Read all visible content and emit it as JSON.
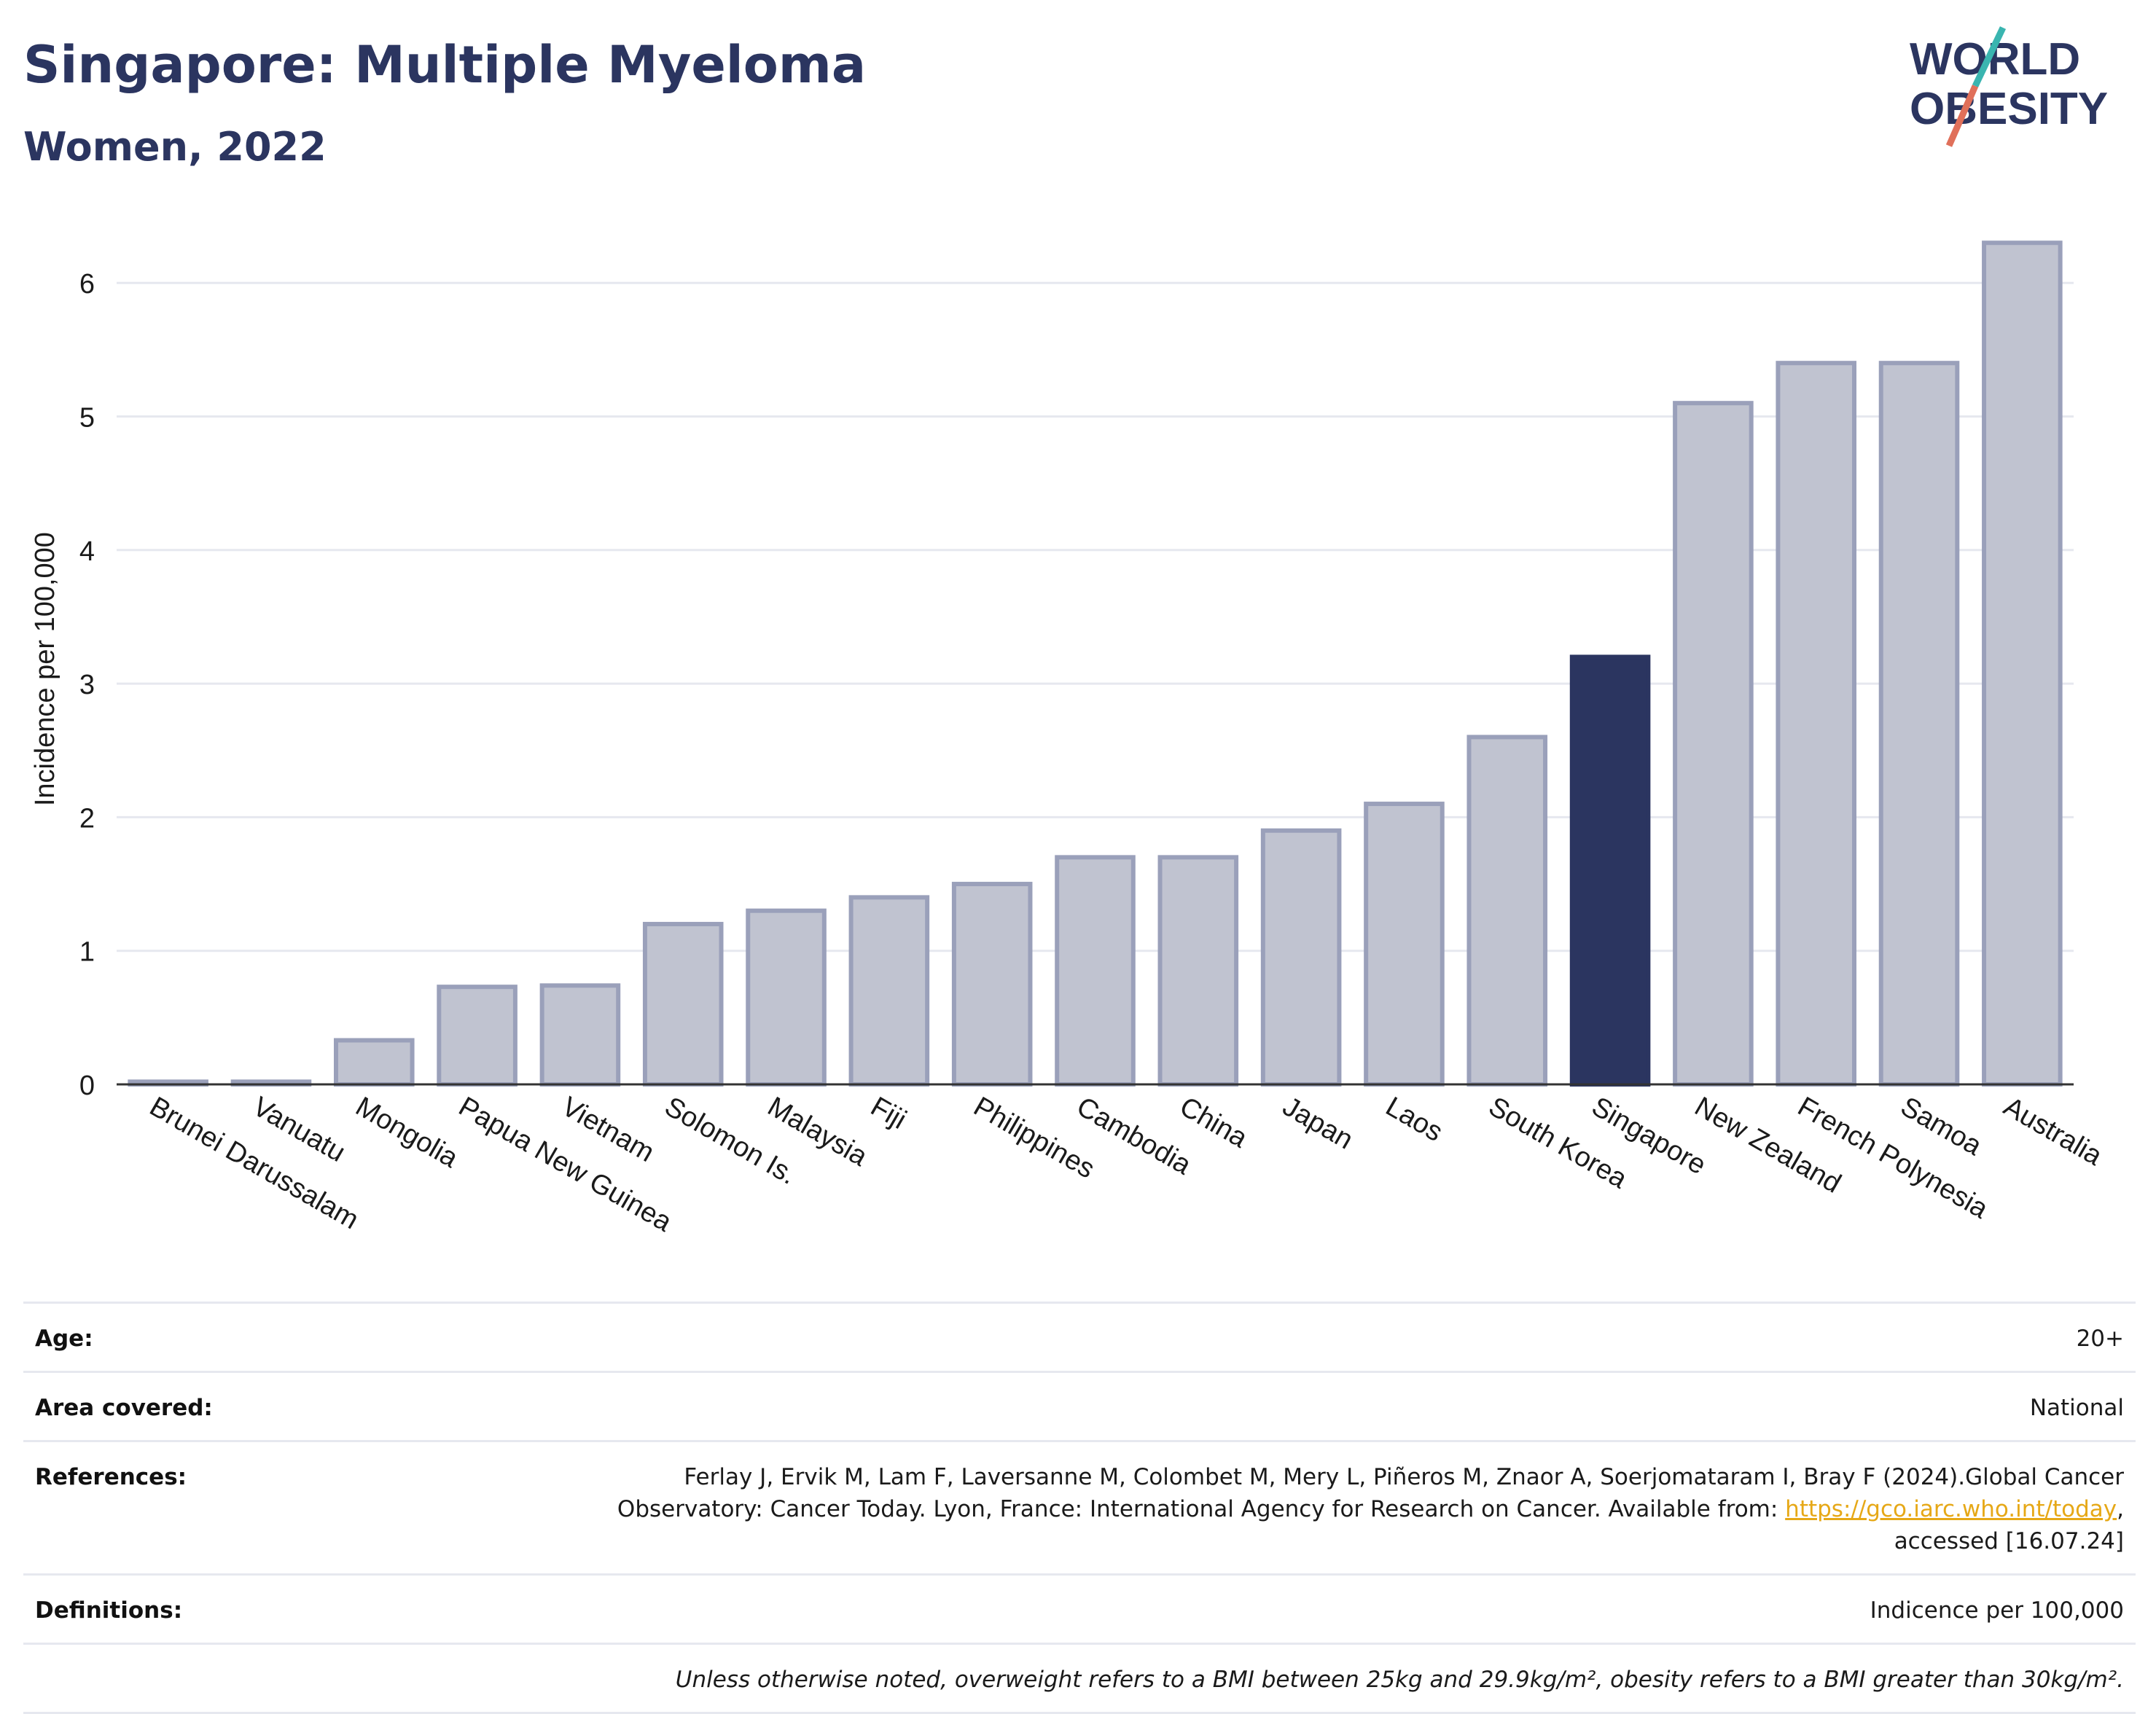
{
  "header": {
    "title": "Singapore: Multiple Myeloma",
    "subtitle": "Women, 2022"
  },
  "logo": {
    "line1": "WORLD",
    "line2": "OBESITY"
  },
  "chart_data": {
    "type": "bar",
    "ylabel": "Incidence per 100,000",
    "xlabel": "",
    "ylim": [
      0,
      6.5
    ],
    "yticks": [
      0,
      1,
      2,
      3,
      4,
      5,
      6
    ],
    "grid": true,
    "highlight": "Singapore",
    "colors": {
      "bar": "#c0c3d0",
      "bar_edge": "#9aa0ba",
      "highlight": "#2b3560",
      "grid": "#e6e8ef",
      "axis": "#333333"
    },
    "categories": [
      "Brunei Darussalam",
      "Vanuatu",
      "Mongolia",
      "Papua New Guinea",
      "Vietnam",
      "Solomon Is.",
      "Malaysia",
      "Fiji",
      "Philippines",
      "Cambodia",
      "China",
      "Japan",
      "Laos",
      "South Korea",
      "Singapore",
      "New Zealand",
      "French Polynesia",
      "Samoa",
      "Australia"
    ],
    "values": [
      0.02,
      0.02,
      0.33,
      0.73,
      0.74,
      1.2,
      1.3,
      1.4,
      1.5,
      1.7,
      1.7,
      1.9,
      2.1,
      2.6,
      3.2,
      5.1,
      5.4,
      5.4,
      6.3
    ]
  },
  "info": {
    "age_label": "Age:",
    "age_value": "20+",
    "area_label": "Area covered:",
    "area_value": "National",
    "references_label": "References:",
    "references_text": "Ferlay J, Ervik M, Lam F, Laversanne M, Colombet M, Mery L, Piñeros M, Znaor A, Soerjomataram I, Bray F (2024).Global Cancer Observatory: Cancer Today. Lyon, France: International Agency for Research on Cancer. Available from: ",
    "references_link": "https://gco.iarc.who.int/today",
    "references_tail": ", accessed [16.07.24]",
    "definitions_label": "Definitions:",
    "definitions_value": "Indicence per 100,000",
    "note": "Unless otherwise noted, overweight refers to a BMI between 25kg and 29.9kg/m², obesity refers to a BMI greater than 30kg/m²."
  }
}
